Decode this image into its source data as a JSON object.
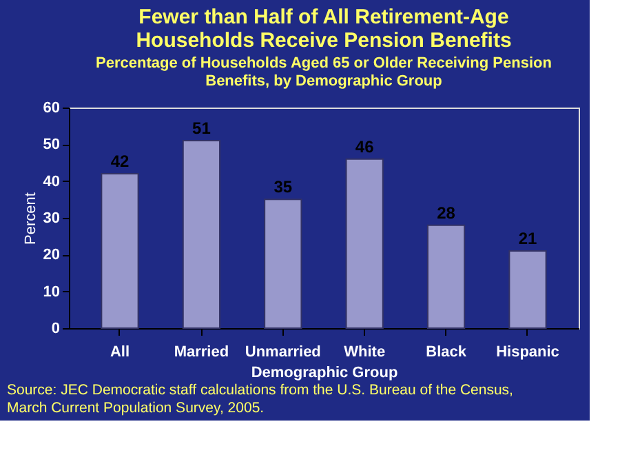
{
  "chart_data": {
    "type": "bar",
    "title": "Fewer than Half of All Retirement-Age Households Receive Pension Benefits",
    "subtitle": "Percentage of Households Aged 65 or Older Receiving Pension Benefits, by Demographic Group",
    "xlabel": "Demographic Group",
    "ylabel": "Percent",
    "categories": [
      "All",
      "Married",
      "Unmarried",
      "White",
      "Black",
      "Hispanic"
    ],
    "values": [
      42,
      51,
      35,
      46,
      28,
      21
    ],
    "color": "#9999cc",
    "ylim": [
      0,
      60
    ],
    "yticks": [
      0,
      10,
      20,
      30,
      40,
      50,
      60
    ],
    "data_labels": true,
    "grid": false,
    "annotations": [
      "Source: JEC Democratic staff calculations from the U.S. Bureau of the Census, March Current Population Survey, 2005."
    ]
  }
}
